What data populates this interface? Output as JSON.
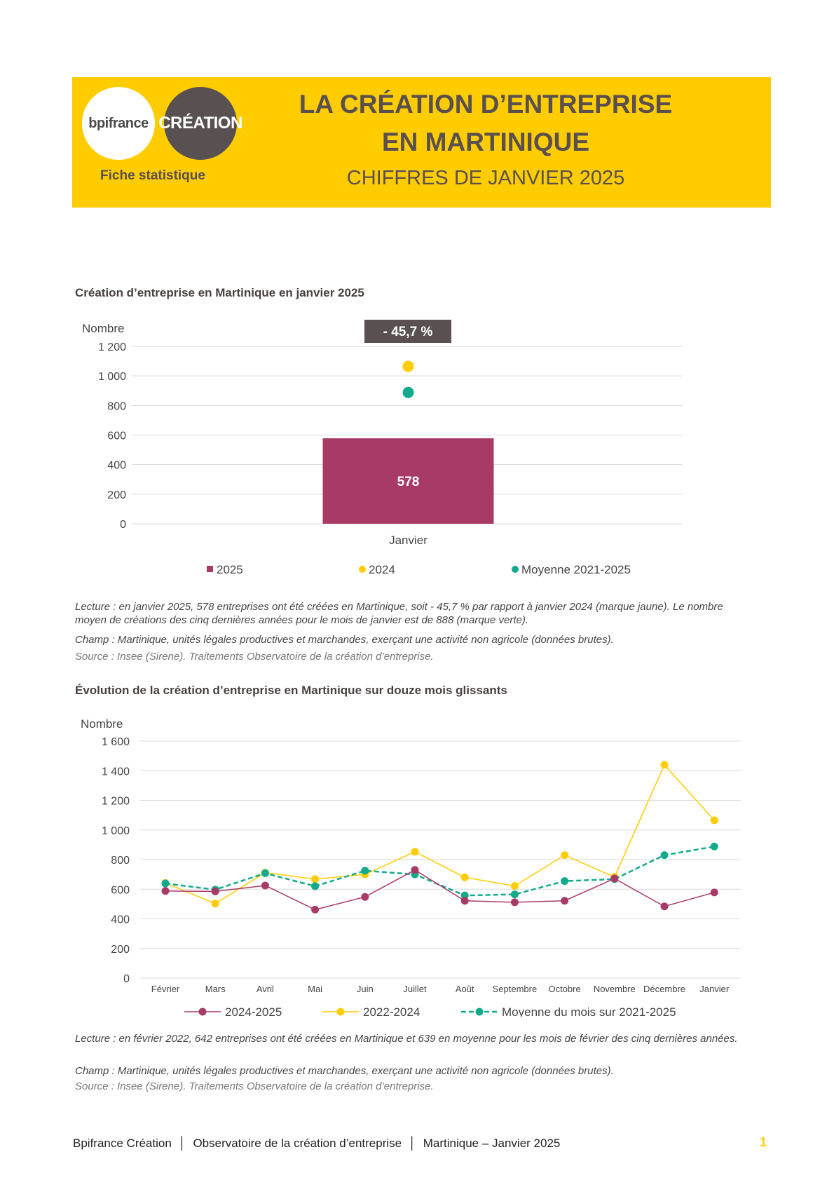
{
  "header": {
    "logo_bpi": "bpifrance",
    "logo_creation": "CRÉATION",
    "fiche": "Fiche statistique",
    "title_line1": "LA CRÉATION D’ENTREPRISE",
    "title_line2": "EN MARTINIQUE",
    "subtitle": "CHIFFRES DE JANVIER 2025"
  },
  "chart1": {
    "title": "Création d’entreprise en Martinique en janvier 2025",
    "badge": "- 45,7 %",
    "value_label": "578"
  },
  "note1": {
    "lecture": "Lecture : en janvier 2025, 578 entreprises ont été créées en Martinique, soit - 45,7 % par rapport à janvier 2024 (marque jaune). Le nombre moyen de créations des cinq dernières années pour le mois de janvier est de 888 (marque verte).",
    "champ": "Champ : Martinique, unités légales productives et marchandes, exerçant une activité non agricole (données brutes).",
    "source": "Source : Insee (Sirene). Traitements Observatoire de la création d’entreprise."
  },
  "chart2": {
    "title": "Évolution de la création d’entreprise en Martinique sur douze mois glissants"
  },
  "note2": {
    "lecture": "Lecture : en février 2022, 642 entreprises ont été créées en Martinique et 639 en moyenne pour les mois de février des cinq dernières années.",
    "champ": "Champ : Martinique, unités légales productives et marchandes, exerçant une activité non agricole (données brutes).",
    "source": "Source : Insee (Sirene). Traitements Observatoire de la création d’entreprise."
  },
  "footer": {
    "part1": "Bpifrance Création",
    "part2": "Observatoire de la création d’entreprise",
    "part3": "Martinique – Janvier 2025",
    "page": "1"
  },
  "chart_data": [
    {
      "type": "bar",
      "title": "",
      "ylabel": "Nombre",
      "ylim": [
        0,
        1200
      ],
      "yticks": [
        0,
        200,
        400,
        600,
        800,
        1000,
        1200
      ],
      "ytick_labels": [
        "0",
        "200",
        "400",
        "600",
        "800",
        "1 000",
        "1 200"
      ],
      "categories": [
        "Janvier"
      ],
      "series": [
        {
          "name": "2025",
          "kind": "bar",
          "color": "#a83a68",
          "values": [
            578
          ]
        },
        {
          "name": "2024",
          "kind": "marker",
          "color": "#ffcc00",
          "values": [
            1065
          ]
        },
        {
          "name": "Moyenne 2021-2025",
          "kind": "marker",
          "color": "#13a98b",
          "values": [
            888
          ]
        }
      ],
      "grid": true,
      "legend": "bottom"
    },
    {
      "type": "line",
      "title": "",
      "ylabel": "Nombre",
      "ylim": [
        0,
        1600
      ],
      "yticks": [
        0,
        200,
        400,
        600,
        800,
        1000,
        1200,
        1400,
        1600
      ],
      "ytick_labels": [
        "0",
        "200",
        "400",
        "600",
        "800",
        "1 000",
        "1 200",
        "1 400",
        "1 600"
      ],
      "categories": [
        "Février",
        "Mars",
        "Avril",
        "Mai",
        "Juin",
        "Juillet",
        "Août",
        "Septembre",
        "Octobre",
        "Novembre",
        "Décembre",
        "Janvier"
      ],
      "series": [
        {
          "name": "2024-2025",
          "color": "#a83a68",
          "style": "solid",
          "values": [
            588,
            585,
            625,
            462,
            548,
            730,
            522,
            512,
            522,
            672,
            484,
            578
          ]
        },
        {
          "name": "2022-2024",
          "color": "#ffcc00",
          "style": "solid",
          "values": [
            642,
            503,
            712,
            668,
            700,
            853,
            680,
            622,
            830,
            682,
            1440,
            1065
          ]
        },
        {
          "name": "Moyenne du mois sur 2021-2025",
          "color": "#13a98b",
          "style": "dashed",
          "values": [
            639,
            597,
            708,
            620,
            725,
            700,
            558,
            565,
            655,
            668,
            830,
            888
          ]
        }
      ],
      "grid": true,
      "legend": "bottom"
    }
  ]
}
